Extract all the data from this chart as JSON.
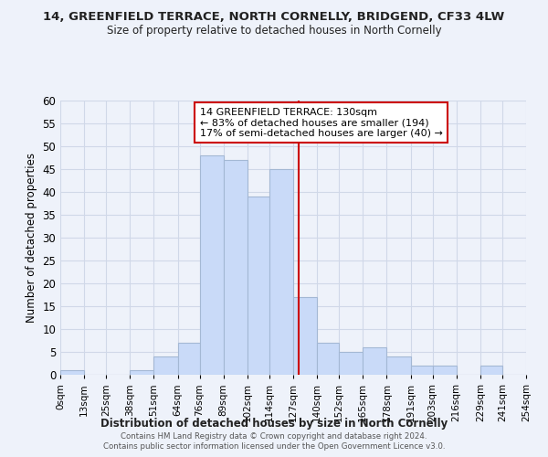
{
  "title": "14, GREENFIELD TERRACE, NORTH CORNELLY, BRIDGEND, CF33 4LW",
  "subtitle": "Size of property relative to detached houses in North Cornelly",
  "xlabel": "Distribution of detached houses by size in North Cornelly",
  "ylabel": "Number of detached properties",
  "bin_edges": [
    0,
    13,
    25,
    38,
    51,
    64,
    76,
    89,
    102,
    114,
    127,
    140,
    152,
    165,
    178,
    191,
    203,
    216,
    229,
    241,
    254
  ],
  "bin_labels": [
    "0sqm",
    "13sqm",
    "25sqm",
    "38sqm",
    "51sqm",
    "64sqm",
    "76sqm",
    "89sqm",
    "102sqm",
    "114sqm",
    "127sqm",
    "140sqm",
    "152sqm",
    "165sqm",
    "178sqm",
    "191sqm",
    "203sqm",
    "216sqm",
    "229sqm",
    "241sqm",
    "254sqm"
  ],
  "counts": [
    1,
    0,
    0,
    1,
    4,
    7,
    48,
    47,
    39,
    45,
    17,
    7,
    5,
    6,
    4,
    2,
    2,
    0,
    2,
    0
  ],
  "bar_color": "#c9daf8",
  "bar_edge_color": "#a4b8d4",
  "property_value": 130,
  "vline_color": "#cc0000",
  "ylim": [
    0,
    60
  ],
  "yticks": [
    0,
    5,
    10,
    15,
    20,
    25,
    30,
    35,
    40,
    45,
    50,
    55,
    60
  ],
  "annotation_title": "14 GREENFIELD TERRACE: 130sqm",
  "annotation_line1": "← 83% of detached houses are smaller (194)",
  "annotation_line2": "17% of semi-detached houses are larger (40) →",
  "annotation_box_color": "#ffffff",
  "annotation_box_edge": "#cc0000",
  "footer_line1": "Contains HM Land Registry data © Crown copyright and database right 2024.",
  "footer_line2": "Contains public sector information licensed under the Open Government Licence v3.0.",
  "grid_color": "#d0d8e8",
  "background_color": "#eef2fa"
}
